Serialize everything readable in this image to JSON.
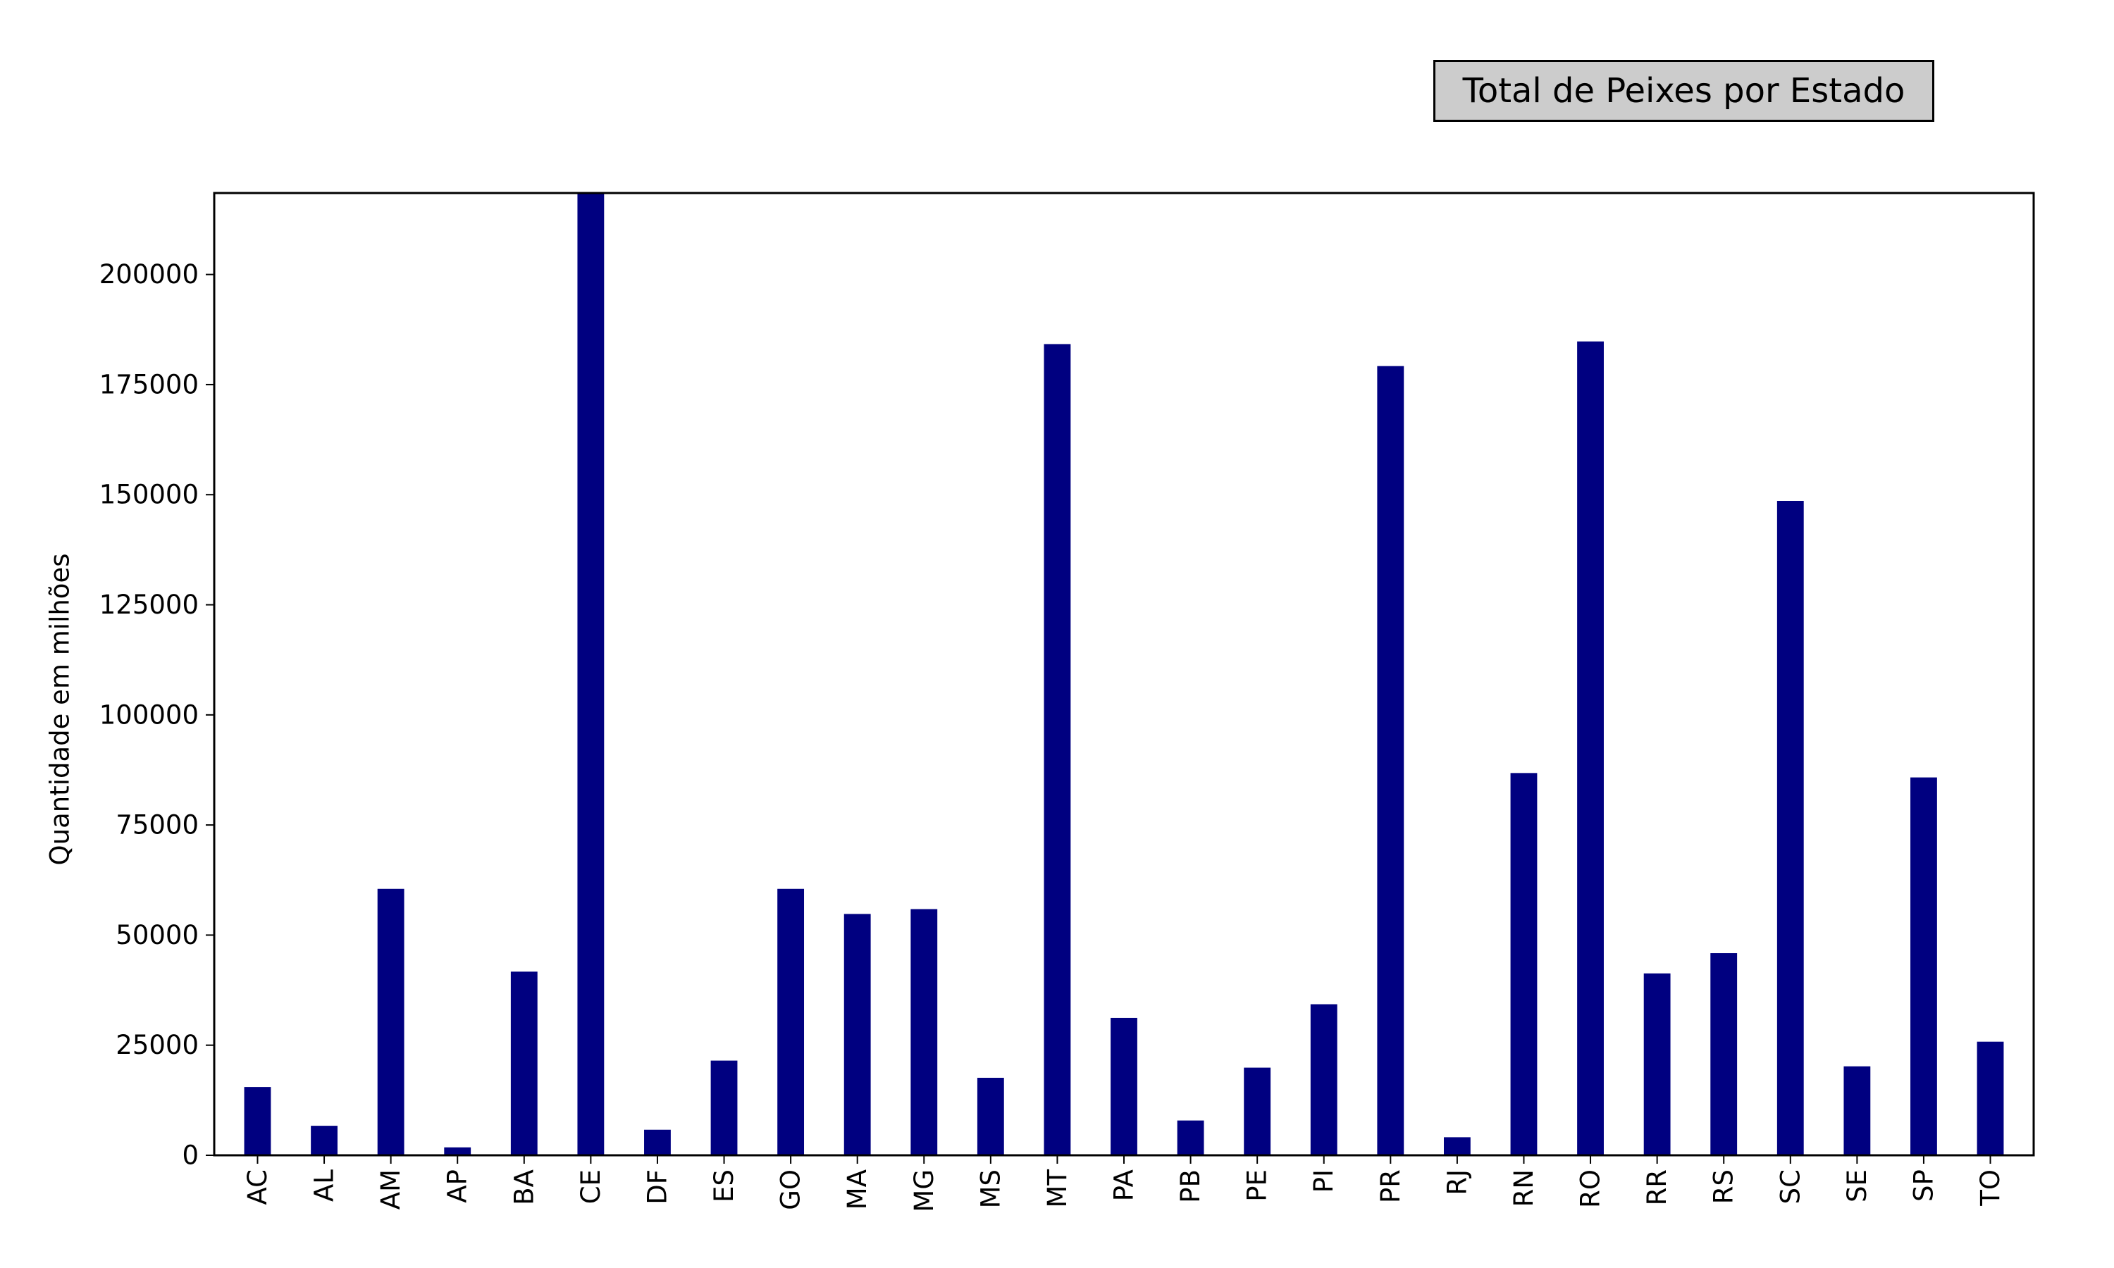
{
  "chart_data": {
    "type": "bar",
    "title": "Total de Peixes por Estado",
    "xlabel": "",
    "ylabel": "Quantidade em milhões",
    "ylim": [
      0,
      218500
    ],
    "yticks": [
      0,
      25000,
      50000,
      75000,
      100000,
      125000,
      150000,
      175000,
      200000
    ],
    "ytick_labels": [
      "0",
      "25000",
      "50000",
      "75000",
      "100000",
      "125000",
      "150000",
      "175000",
      "200000"
    ],
    "grid": false,
    "legend": "none",
    "bar_color": "#000080",
    "categories": [
      "AC",
      "AL",
      "AM",
      "AP",
      "BA",
      "CE",
      "DF",
      "ES",
      "GO",
      "MA",
      "MG",
      "MS",
      "MT",
      "PA",
      "PB",
      "PE",
      "PI",
      "PR",
      "RJ",
      "RN",
      "RO",
      "RR",
      "RS",
      "SC",
      "SE",
      "SP",
      "TO"
    ],
    "values": [
      15500,
      6700,
      60500,
      1800,
      41700,
      218500,
      5800,
      21500,
      60500,
      54800,
      55900,
      17600,
      184200,
      31200,
      7900,
      19900,
      34300,
      179200,
      4100,
      86800,
      184800,
      41300,
      45900,
      148600,
      20200,
      85800,
      25800
    ]
  }
}
